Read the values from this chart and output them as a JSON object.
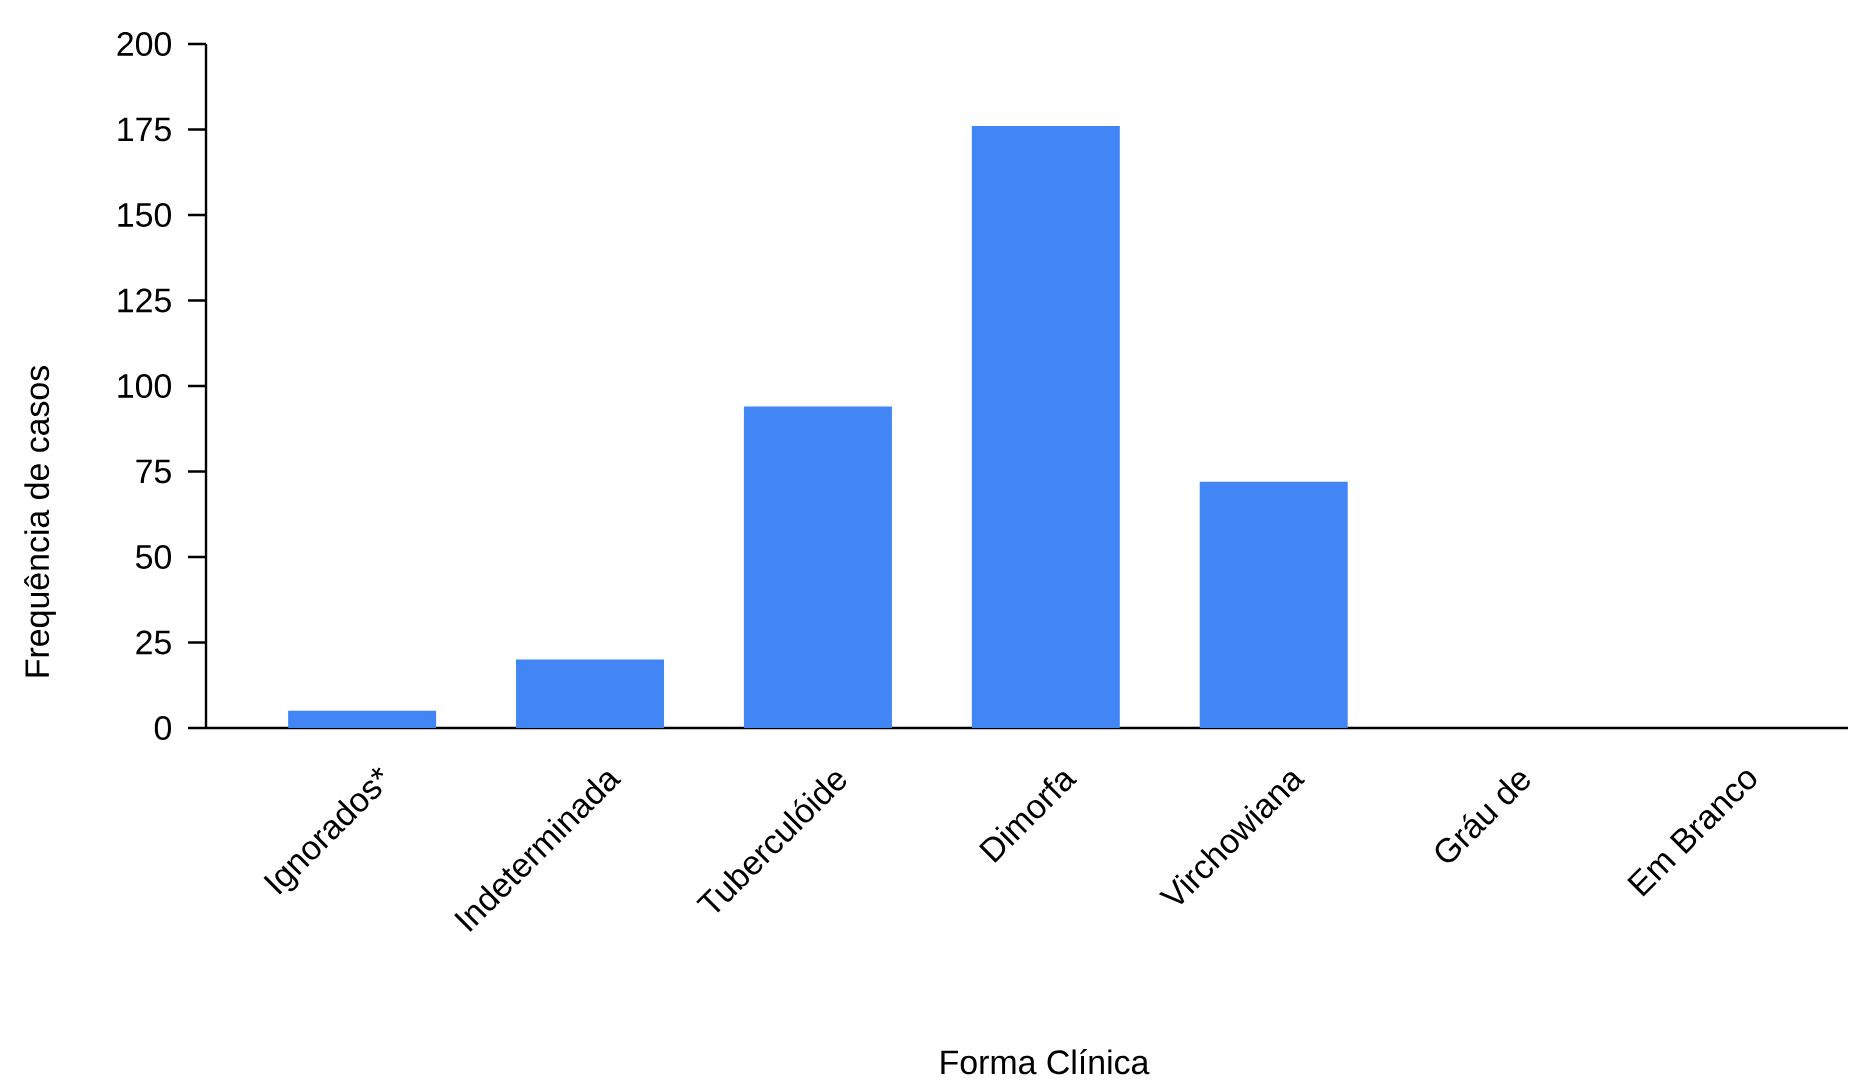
{
  "chart_data": {
    "type": "bar",
    "xlabel": "Forma Clínica",
    "ylabel": "Frequência de casos",
    "categories": [
      "Ignorados*",
      "Indeterminada",
      "Tuberculóide",
      "Dimorfa",
      "Virchowiana",
      "Gráu de",
      "Em Branco"
    ],
    "values": [
      5,
      20,
      94,
      176,
      72,
      0,
      0
    ],
    "color": "#4285f4",
    "ylim": [
      0,
      200
    ],
    "yticks": [
      0,
      25,
      50,
      75,
      100,
      125,
      150,
      175,
      200
    ],
    "grid": false
  }
}
